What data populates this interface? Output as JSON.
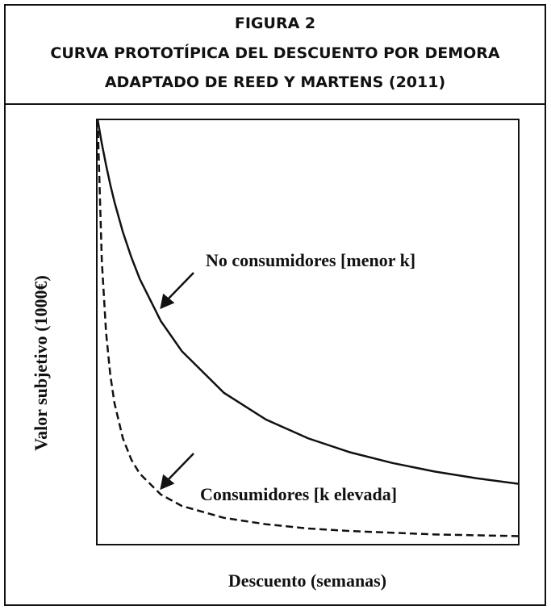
{
  "chart_data": {
    "type": "line",
    "title": [
      "FIGURA 2",
      "CURVA PROTOTÍPICA DEL DESCUENTO POR DEMORA",
      "ADAPTADO DE REED Y MARTENS (2011)"
    ],
    "x_label": "Descuento (semanas)",
    "y_label": "Valor subjetivo (1000€)",
    "x": [
      0,
      1,
      2,
      3,
      4,
      6,
      8,
      10,
      15,
      20,
      30,
      40,
      50,
      60,
      70,
      80,
      90,
      100
    ],
    "xlim": [
      0,
      100
    ],
    "ylim": [
      0,
      1000
    ],
    "series": [
      {
        "name": "No consumidores [menor k]",
        "color": "#111111",
        "line_style": "solid",
        "values": [
          1000,
          943,
          893,
          847,
          806,
          735,
          676,
          625,
          526,
          455,
          357,
          294,
          250,
          217,
          192,
          172,
          156,
          143
        ]
      },
      {
        "name": "Consumidores [k elevada]",
        "color": "#111111",
        "line_style": "dashed",
        "values": [
          1000,
          667,
          500,
          400,
          333,
          250,
          200,
          167,
          118,
          91,
          63,
          48,
          38,
          32,
          28,
          24,
          22,
          20
        ]
      }
    ]
  }
}
